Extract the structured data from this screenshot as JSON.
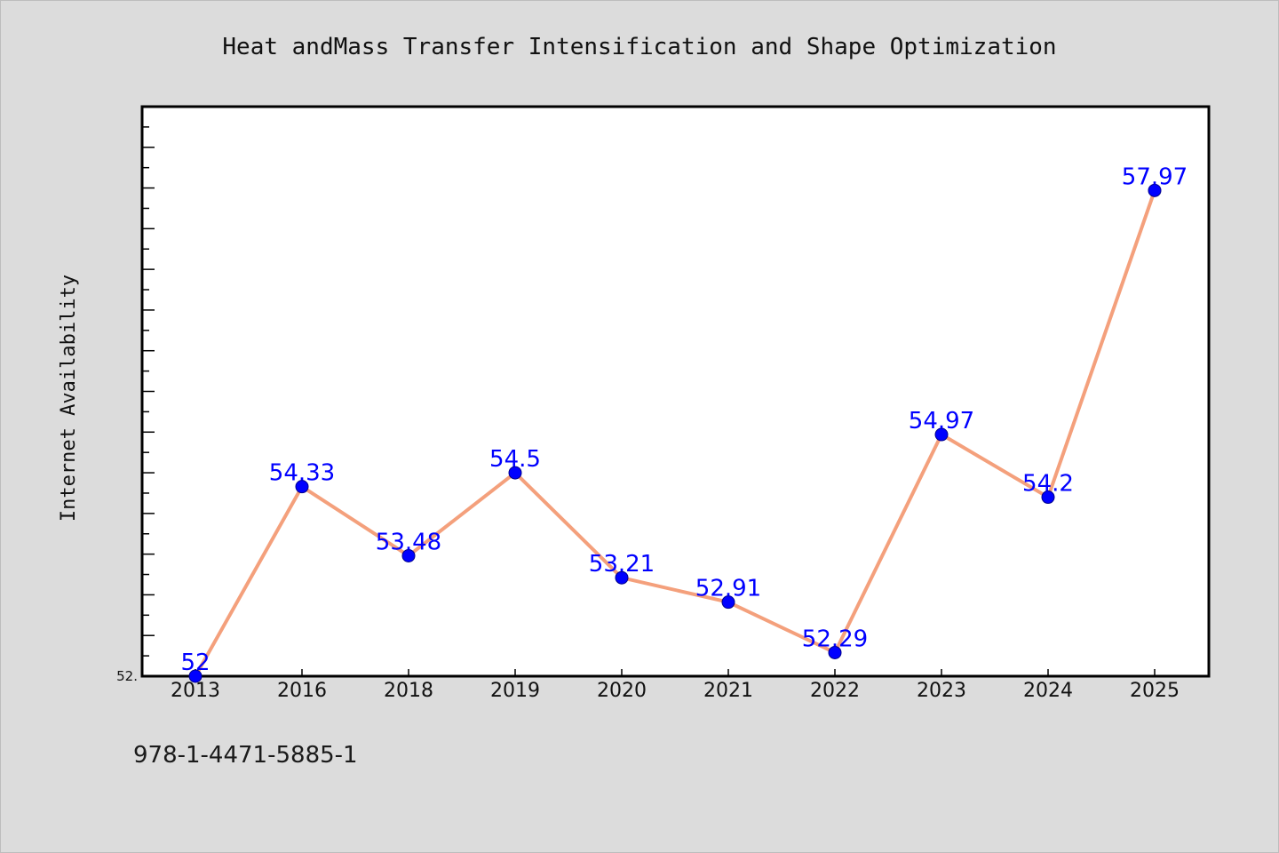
{
  "chart_data": {
    "type": "line",
    "title": "Heat andMass Transfer Intensification and Shape Optimization",
    "xlabel": "",
    "ylabel": "Internet Availability",
    "categories": [
      "2013",
      "2016",
      "2018",
      "2019",
      "2020",
      "2021",
      "2022",
      "2023",
      "2024",
      "2025"
    ],
    "values": [
      52,
      54.33,
      53.48,
      54.5,
      53.21,
      52.91,
      52.29,
      54.97,
      54.2,
      57.97
    ],
    "value_labels": [
      "52",
      "54.33",
      "53.48",
      "54.5",
      "53.21",
      "52.91",
      "52.29",
      "54.97",
      "54.2",
      "57.97"
    ],
    "ylim": [
      52,
      59
    ],
    "y_tick_label": "52.",
    "grid": false,
    "line_color": "#f4a07c",
    "marker_color": "#0000ff",
    "label_color": "#0000ff"
  },
  "footer": {
    "isbn": "978-1-4471-5885-1"
  }
}
